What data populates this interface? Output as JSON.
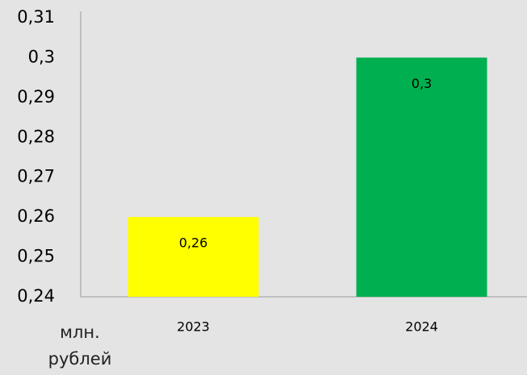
{
  "chart_data": {
    "type": "bar",
    "categories": [
      "2023",
      "2024"
    ],
    "values": [
      0.26,
      0.3
    ],
    "value_labels": [
      "0,26",
      "0,3"
    ],
    "colors": [
      "#ffff00",
      "#00b050"
    ],
    "y_label": "млн. рублей",
    "ylim": [
      0.24,
      0.31
    ],
    "yticks": [
      {
        "value": 0.24,
        "label": "0,24"
      },
      {
        "value": 0.25,
        "label": "0,25"
      },
      {
        "value": 0.26,
        "label": "0,26"
      },
      {
        "value": 0.27,
        "label": "0,27"
      },
      {
        "value": 0.28,
        "label": "0,28"
      },
      {
        "value": 0.29,
        "label": "0,29"
      },
      {
        "value": 0.3,
        "label": "0,3"
      },
      {
        "value": 0.31,
        "label": "0,31"
      }
    ],
    "grid": false
  }
}
